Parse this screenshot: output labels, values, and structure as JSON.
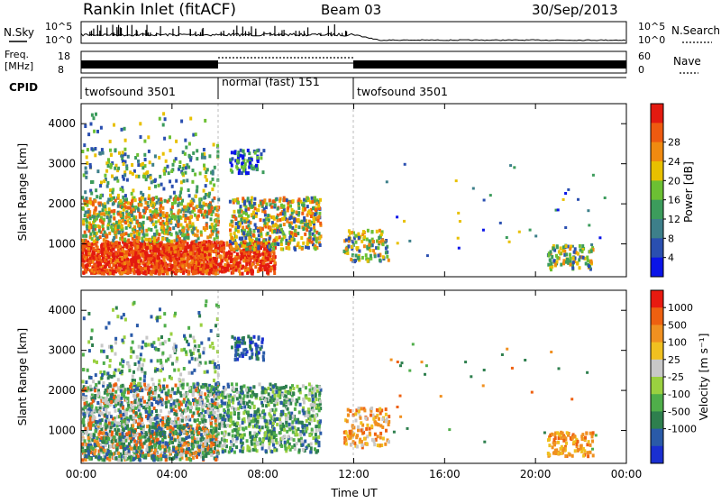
{
  "header": {
    "station": "Rankin Inlet (fitACF)",
    "beam": "Beam 03",
    "date": "30/Sep/2013"
  },
  "sky_panel": {
    "left_label": "N.Sky",
    "left_ticks": [
      "10^5",
      "10^0"
    ],
    "right_ticks": [
      "10^5",
      "10^0"
    ],
    "right_label": "N.Search"
  },
  "freq_panel": {
    "left_label_1": "Freq.",
    "left_label_2": "[MHz]",
    "left_ticks": [
      "18",
      "8"
    ],
    "right_ticks": [
      "60",
      "0"
    ],
    "right_label": "Nave"
  },
  "cpid": {
    "label": "CPID",
    "segments": [
      {
        "text": "twofsound 3501",
        "start_h": 0,
        "end_h": 6
      },
      {
        "text": "normal (fast) 151",
        "start_h": 6,
        "end_h": 12
      },
      {
        "text": "twofsound 3501",
        "start_h": 12,
        "end_h": 24
      }
    ]
  },
  "chart_data": [
    {
      "type": "heatmap",
      "name": "power",
      "ylabel": "Slant Range [km]",
      "xlabel": "",
      "ylim": [
        180,
        4500
      ],
      "xlim_hours": [
        0,
        24
      ],
      "yticks": [
        "1000",
        "2000",
        "3000",
        "4000"
      ],
      "xticks": [
        "00:00",
        "04:00",
        "08:00",
        "12:00",
        "16:00",
        "20:00",
        "00:00"
      ],
      "colorbar": {
        "label": "Power [dB]",
        "ticks": [
          "4",
          "8",
          "12",
          "16",
          "20",
          "24",
          "28"
        ],
        "colors": [
          "#0a14e8",
          "#2a4fb0",
          "#3d7f8a",
          "#3c9c5c",
          "#6cc033",
          "#e8c000",
          "#f08a10",
          "#ee5a10",
          "#e31a10"
        ]
      }
    },
    {
      "type": "heatmap",
      "name": "velocity",
      "ylabel": "Slant Range [km]",
      "xlabel": "Time UT",
      "ylim": [
        180,
        4500
      ],
      "xlim_hours": [
        0,
        24
      ],
      "yticks": [
        "1000",
        "2000",
        "3000",
        "4000"
      ],
      "xticks": [
        "00:00",
        "04:00",
        "08:00",
        "12:00",
        "16:00",
        "20:00",
        "00:00"
      ],
      "colorbar": {
        "label": "Velocity [m s⁻¹]",
        "ticks": [
          "1000",
          "500",
          "100",
          "25",
          "-25",
          "-100",
          "-500",
          "-1000"
        ],
        "colors": [
          "#1a2fd0",
          "#2a5aa8",
          "#2e7f4e",
          "#4fae4a",
          "#9ad040",
          "#c8c8c8",
          "#f0c020",
          "#f09020",
          "#ee6010",
          "#e81a10"
        ]
      }
    }
  ],
  "colors": {
    "line": "#000000",
    "grid_dash": "#bbbbbb"
  }
}
